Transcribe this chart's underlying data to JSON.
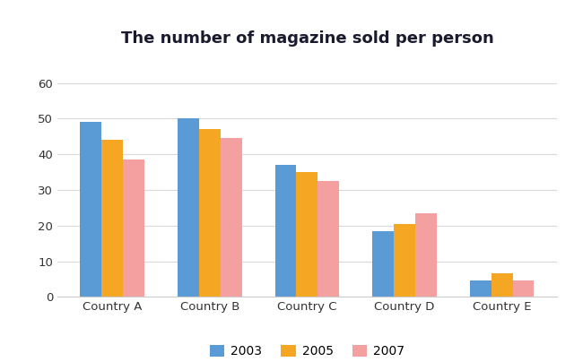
{
  "title": "The number of magazine sold per person",
  "categories": [
    "Country A",
    "Country B",
    "Country C",
    "Country D",
    "Country E"
  ],
  "series": {
    "2003": [
      49,
      50,
      37,
      18.5,
      4.5
    ],
    "2005": [
      44,
      47,
      35,
      20.5,
      6.5
    ],
    "2007": [
      38.5,
      44.5,
      32.5,
      23.5,
      4.5
    ]
  },
  "colors": {
    "2003": "#5B9BD5",
    "2005": "#F5A623",
    "2007": "#F4A0A0"
  },
  "legend_labels": [
    "2003",
    "2005",
    "2007"
  ],
  "ylim": [
    0,
    65
  ],
  "yticks": [
    0,
    10,
    20,
    30,
    40,
    50,
    60
  ],
  "bar_width": 0.22,
  "background_color": "#ffffff",
  "grid_color": "#d9d9d9",
  "title_fontsize": 13,
  "tick_fontsize": 9.5,
  "legend_fontsize": 10,
  "title_color": "#1a1a2e"
}
